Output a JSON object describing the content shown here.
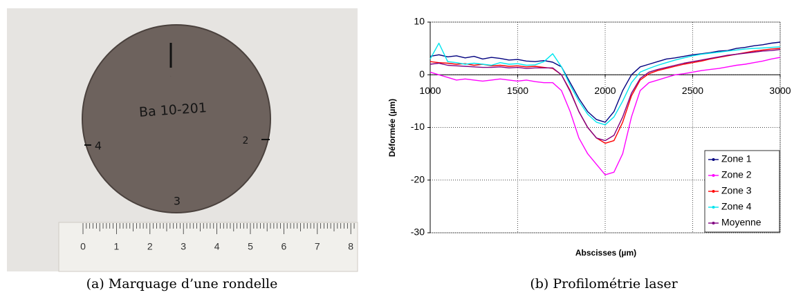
{
  "panel_a": {
    "caption": "(a) Marquage d’une rondelle",
    "label": "Ba 10-201",
    "marks": [
      "1",
      "2",
      "3",
      "4"
    ],
    "ruler": [
      "0",
      "1",
      "2",
      "3",
      "4",
      "5",
      "6",
      "7",
      "8"
    ]
  },
  "panel_b": {
    "caption": "(b) Profilométrie laser"
  },
  "chart_data": {
    "type": "line",
    "xlabel": "Abscisses (µm)",
    "ylabel": "Déformée (µm)",
    "x": [
      1000,
      1050,
      1100,
      1150,
      1200,
      1250,
      1300,
      1350,
      1400,
      1450,
      1500,
      1550,
      1600,
      1650,
      1700,
      1750,
      1800,
      1850,
      1900,
      1950,
      2000,
      2050,
      2100,
      2150,
      2200,
      2250,
      2300,
      2350,
      2400,
      2450,
      2500,
      2550,
      2600,
      2650,
      2700,
      2750,
      2800,
      2850,
      2900,
      2950,
      3000
    ],
    "series": [
      {
        "name": "Zone 1",
        "color": "#00007f",
        "values": [
          3.5,
          3.8,
          3.4,
          3.6,
          3.2,
          3.5,
          3.0,
          3.3,
          3.1,
          2.8,
          2.9,
          2.6,
          2.5,
          2.7,
          2.4,
          1.5,
          -1.5,
          -4.5,
          -7,
          -8.5,
          -9,
          -7,
          -3,
          0,
          1.5,
          2,
          2.5,
          3,
          3.2,
          3.5,
          3.8,
          4,
          4.2,
          4.5,
          4.6,
          5,
          5.2,
          5.5,
          5.7,
          6,
          6.2
        ]
      },
      {
        "name": "Zone 2",
        "color": "#ff00ff",
        "values": [
          0.5,
          0,
          -0.5,
          -1,
          -0.8,
          -1,
          -1.2,
          -1,
          -0.8,
          -1,
          -1.2,
          -1,
          -1.3,
          -1.5,
          -1.5,
          -3,
          -7,
          -12,
          -15,
          -17,
          -19,
          -18.5,
          -15,
          -8,
          -3,
          -1.5,
          -1,
          -0.5,
          0,
          0.2,
          0.5,
          0.8,
          1,
          1.2,
          1.5,
          1.8,
          2,
          2.3,
          2.6,
          3,
          3.3
        ]
      },
      {
        "name": "Zone 3",
        "color": "#ff0000",
        "values": [
          2.5,
          2.3,
          2.2,
          2,
          2.1,
          1.8,
          2,
          1.7,
          1.8,
          1.6,
          1.7,
          1.5,
          1.6,
          1.4,
          1.2,
          0,
          -3,
          -7,
          -10,
          -12,
          -13,
          -12.5,
          -9,
          -4,
          -1,
          0.2,
          0.8,
          1.2,
          1.6,
          2,
          2.3,
          2.6,
          3,
          3.3,
          3.6,
          3.9,
          4.2,
          4.5,
          4.7,
          4.9,
          5
        ]
      },
      {
        "name": "Zone 4",
        "color": "#00e5ee",
        "values": [
          3,
          6,
          2.5,
          2.3,
          2,
          2.2,
          2,
          1.8,
          2.3,
          2,
          2.1,
          1.8,
          1.9,
          2.5,
          4,
          1.5,
          -2,
          -5,
          -7.5,
          -9,
          -9.5,
          -8,
          -5,
          -1.5,
          0.5,
          1.2,
          1.8,
          2.3,
          2.8,
          3.2,
          3.6,
          3.9,
          4.1,
          4.3,
          4.5,
          4.7,
          4.9,
          5,
          5.1,
          5.2,
          5.3
        ]
      },
      {
        "name": "Moyenne",
        "color": "#800080",
        "values": [
          2,
          2.2,
          1.8,
          1.7,
          1.6,
          1.5,
          1.4,
          1.4,
          1.5,
          1.3,
          1.4,
          1.2,
          1.3,
          1.3,
          1.3,
          0,
          -3.2,
          -7,
          -10,
          -12,
          -12.5,
          -11.5,
          -8,
          -3.5,
          -0.7,
          0.5,
          1,
          1.4,
          1.8,
          2.2,
          2.5,
          2.8,
          3.1,
          3.4,
          3.7,
          3.9,
          4.1,
          4.3,
          4.5,
          4.6,
          4.8
        ]
      }
    ],
    "xlim": [
      1000,
      3000
    ],
    "xticks": [
      1000,
      1500,
      2000,
      2500,
      3000
    ],
    "ylim": [
      -30,
      10
    ],
    "yticks": [
      -30,
      -20,
      -10,
      0,
      10
    ],
    "grid": true,
    "legend": "lower right"
  }
}
